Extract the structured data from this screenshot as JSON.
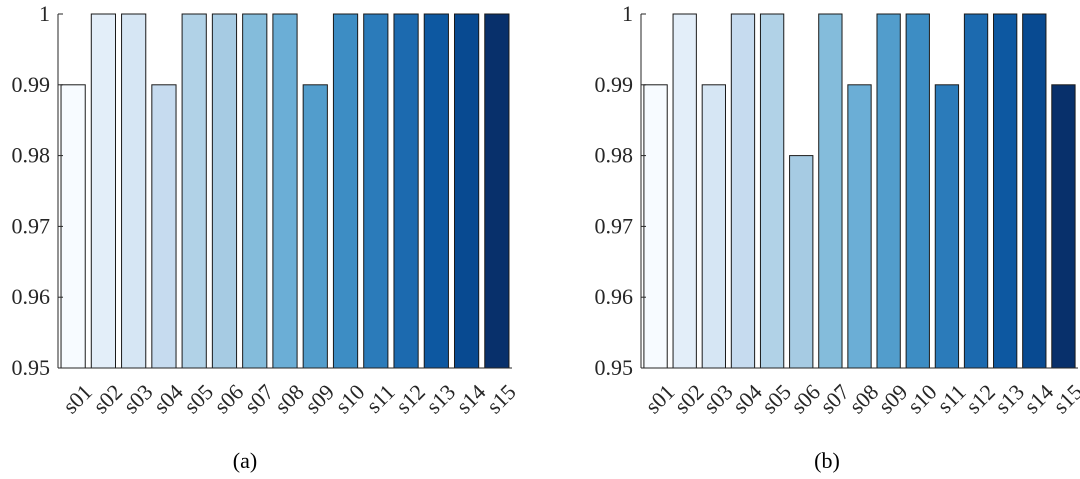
{
  "chart_data": [
    {
      "type": "bar",
      "title": "",
      "caption": "(a)",
      "xlabel": "",
      "ylabel": "",
      "categories": [
        "s01",
        "s02",
        "s03",
        "s04",
        "s05",
        "s06",
        "s07",
        "s08",
        "s09",
        "s10",
        "s11",
        "s12",
        "s13",
        "s14",
        "s15"
      ],
      "values": [
        0.99,
        1,
        1,
        0.99,
        1,
        1,
        1,
        1,
        0.99,
        1,
        1,
        1,
        1,
        1,
        1
      ],
      "ylim": [
        0.95,
        1
      ],
      "yticks": [
        "0.95",
        "0.96",
        "0.97",
        "0.98",
        "0.99",
        "1"
      ],
      "grid": false,
      "colors": [
        "#f7fbff",
        "#e3eef9",
        "#d6e6f4",
        "#c6dbef",
        "#b1d2e7",
        "#a6cbe3",
        "#84bcdb",
        "#6baed6",
        "#529dcc",
        "#3d8dc4",
        "#2b7bba",
        "#1c6aaf",
        "#0d58a1",
        "#084a91",
        "#08306b"
      ]
    },
    {
      "type": "bar",
      "title": "",
      "caption": "(b)",
      "xlabel": "",
      "ylabel": "",
      "categories": [
        "s01",
        "s02",
        "s03",
        "s04",
        "s05",
        "s06",
        "s07",
        "s08",
        "s09",
        "s10",
        "s11",
        "s12",
        "s13",
        "s14",
        "s15"
      ],
      "values": [
        0.99,
        1,
        0.99,
        1,
        1,
        0.98,
        1,
        0.99,
        1,
        1,
        0.99,
        1,
        1,
        1,
        0.99
      ],
      "ylim": [
        0.95,
        1
      ],
      "yticks": [
        "0.95",
        "0.96",
        "0.97",
        "0.98",
        "0.99",
        "1"
      ],
      "grid": false,
      "colors": [
        "#f7fbff",
        "#e3eef9",
        "#d6e6f4",
        "#c6dbef",
        "#b1d2e7",
        "#a6cbe3",
        "#84bcdb",
        "#6baed6",
        "#529dcc",
        "#3d8dc4",
        "#2b7bba",
        "#1c6aaf",
        "#0d58a1",
        "#084a91",
        "#08306b"
      ]
    }
  ]
}
